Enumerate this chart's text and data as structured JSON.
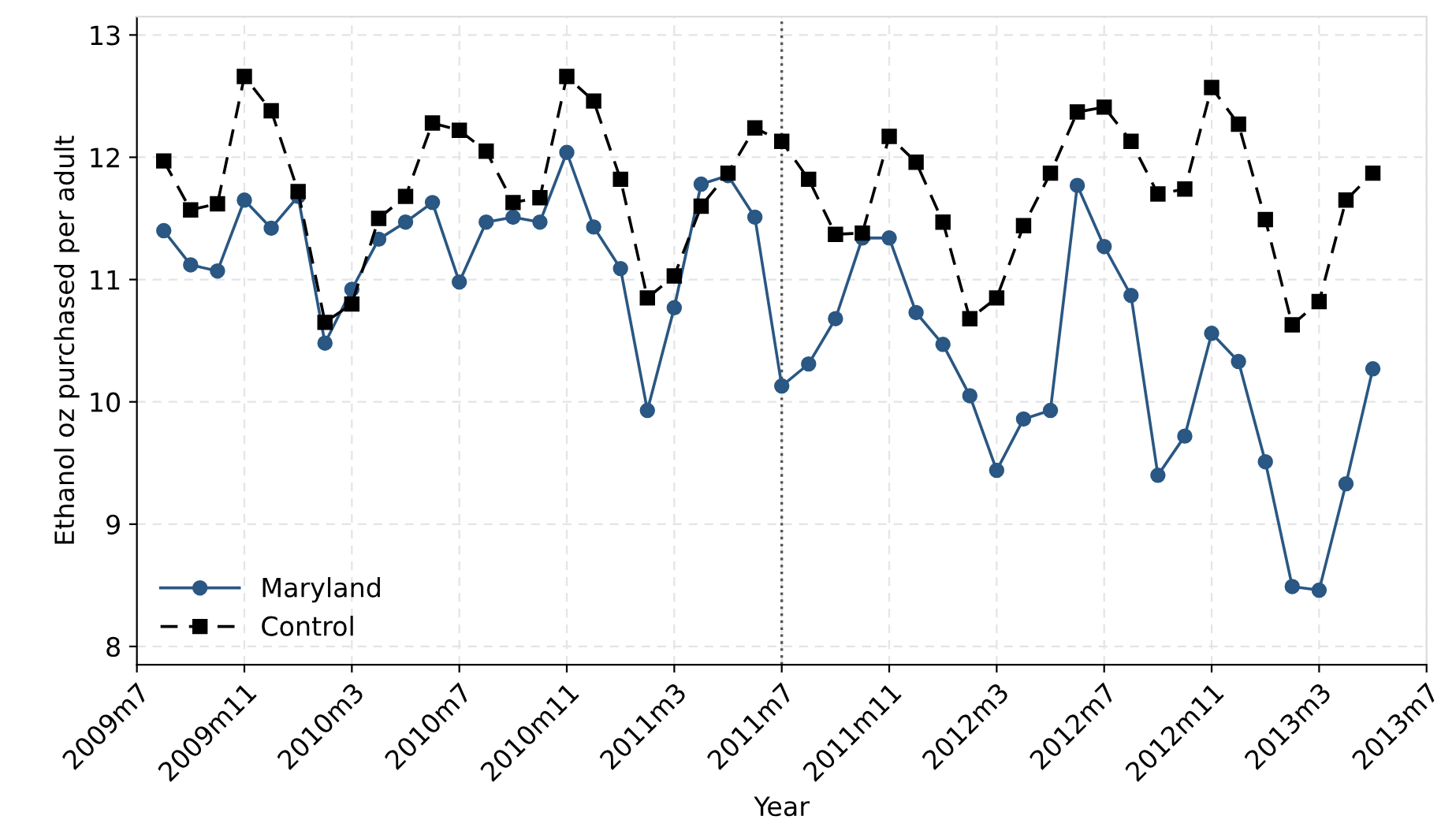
{
  "chart_data": {
    "type": "line",
    "xlabel": "Year",
    "ylabel": "Ethanol oz purchased per adult",
    "x": [
      "2009-08",
      "2009-09",
      "2009-10",
      "2009-11",
      "2009-12",
      "2010-01",
      "2010-02",
      "2010-03",
      "2010-04",
      "2010-05",
      "2010-06",
      "2010-07",
      "2010-08",
      "2010-09",
      "2010-10",
      "2010-11",
      "2010-12",
      "2011-01",
      "2011-02",
      "2011-03",
      "2011-04",
      "2011-05",
      "2011-06",
      "2011-07",
      "2011-08",
      "2011-09",
      "2011-10",
      "2011-11",
      "2011-12",
      "2012-01",
      "2012-02",
      "2012-03",
      "2012-04",
      "2012-05",
      "2012-06",
      "2012-07",
      "2012-08",
      "2012-09",
      "2012-10",
      "2012-11",
      "2012-12",
      "2013-01",
      "2013-02",
      "2013-03",
      "2013-04",
      "2013-05"
    ],
    "series": [
      {
        "name": "Maryland",
        "color": "#2a5783",
        "marker": "circle",
        "line_style": "solid",
        "values": [
          11.4,
          11.12,
          11.07,
          11.65,
          11.42,
          11.68,
          10.48,
          10.92,
          11.33,
          11.47,
          11.63,
          10.98,
          11.47,
          11.51,
          11.47,
          12.04,
          11.43,
          11.09,
          9.93,
          10.77,
          11.78,
          11.85,
          11.51,
          10.13,
          10.31,
          10.68,
          11.34,
          11.34,
          10.73,
          10.47,
          10.05,
          9.44,
          9.86,
          9.93,
          11.77,
          11.27,
          10.87,
          9.4,
          9.72,
          10.56,
          10.33,
          9.51,
          8.49,
          8.46,
          9.33,
          10.27
        ]
      },
      {
        "name": "Control",
        "color": "#000000",
        "marker": "square",
        "line_style": "dashed",
        "values": [
          11.97,
          11.57,
          11.62,
          12.66,
          12.38,
          11.72,
          10.65,
          10.8,
          11.5,
          11.68,
          12.28,
          12.22,
          12.05,
          11.63,
          11.67,
          12.66,
          12.46,
          11.82,
          10.85,
          11.03,
          11.6,
          11.87,
          12.24,
          12.13,
          11.82,
          11.37,
          11.38,
          12.17,
          11.96,
          11.47,
          10.68,
          10.85,
          11.44,
          11.87,
          12.37,
          12.41,
          12.13,
          11.7,
          11.74,
          12.57,
          12.27,
          11.49,
          10.63,
          10.82,
          11.65,
          11.87
        ]
      }
    ],
    "xlim": [
      "2009-07",
      "2013-07"
    ],
    "xticks": [
      {
        "value": "2009-07",
        "label": "2009m7"
      },
      {
        "value": "2009-11",
        "label": "2009m11"
      },
      {
        "value": "2010-03",
        "label": "2010m3"
      },
      {
        "value": "2010-07",
        "label": "2010m7"
      },
      {
        "value": "2010-11",
        "label": "2010m11"
      },
      {
        "value": "2011-03",
        "label": "2011m3"
      },
      {
        "value": "2011-07",
        "label": "2011m7"
      },
      {
        "value": "2011-11",
        "label": "2011m11"
      },
      {
        "value": "2012-03",
        "label": "2012m3"
      },
      {
        "value": "2012-07",
        "label": "2012m7"
      },
      {
        "value": "2012-11",
        "label": "2012m11"
      },
      {
        "value": "2013-03",
        "label": "2013m3"
      },
      {
        "value": "2013-07",
        "label": "2013m7"
      }
    ],
    "ylim": [
      7.85,
      13.15
    ],
    "yticks": [
      8,
      9,
      10,
      11,
      12,
      13
    ],
    "ref_lines": [
      {
        "axis": "x",
        "value": "2011-07",
        "color": "#555555",
        "line_style": "dotted"
      }
    ],
    "grid": true,
    "legend": "bottom left"
  }
}
